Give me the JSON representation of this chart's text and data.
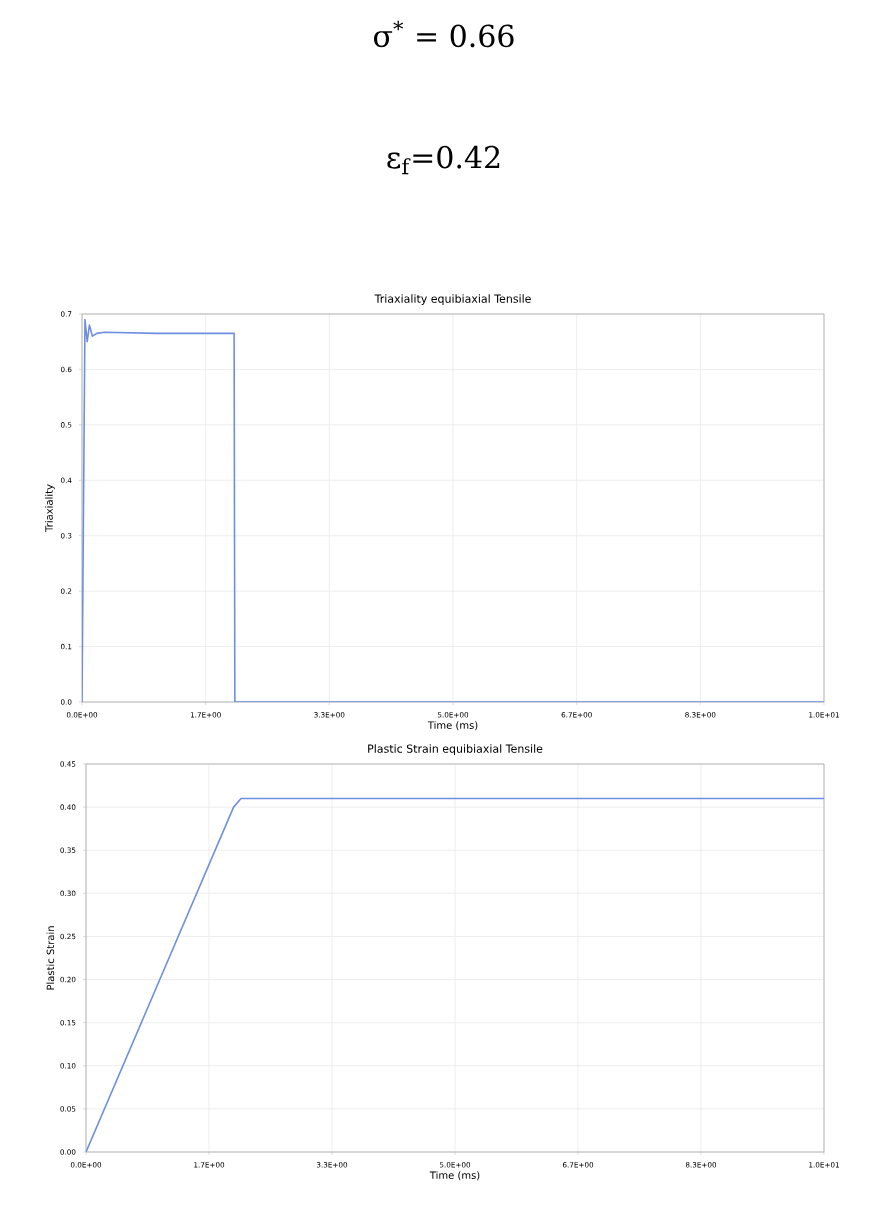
{
  "chart_data": [
    {
      "type": "other",
      "annotations": [
        "σ$^{*}$ = 0.66",
        "ε$_{f}$=0.42"
      ]
    },
    {
      "type": "line",
      "title": "Triaxiality equibiaxial Tensile",
      "xlabel": "Time (ms)",
      "ylabel": "Triaxiality",
      "grid": true,
      "xlim": [
        0,
        10
      ],
      "ylim": [
        0,
        0.7
      ],
      "xticks": [
        {
          "value": 0,
          "label": "0.0E+00"
        },
        {
          "value": 1.667,
          "label": "1.7E+00"
        },
        {
          "value": 3.333,
          "label": "3.3E+00"
        },
        {
          "value": 5,
          "label": "5.0E+00"
        },
        {
          "value": 6.667,
          "label": "6.7E+00"
        },
        {
          "value": 8.333,
          "label": "8.3E+00"
        },
        {
          "value": 10,
          "label": "1.0E+01"
        }
      ],
      "yticks": [
        {
          "value": 0,
          "label": "0.0"
        },
        {
          "value": 0.1,
          "label": "0.1"
        },
        {
          "value": 0.2,
          "label": "0.2"
        },
        {
          "value": 0.3,
          "label": "0.3"
        },
        {
          "value": 0.4,
          "label": "0.4"
        },
        {
          "value": 0.5,
          "label": "0.5"
        },
        {
          "value": 0.6,
          "label": "0.6"
        },
        {
          "value": 0.7,
          "label": "0.7"
        }
      ],
      "series": [
        {
          "color": "#6e8fe0",
          "x": [
            0,
            0.04,
            0.07,
            0.1,
            0.14,
            0.2,
            0.3,
            1.0,
            2.05,
            2.06,
            10
          ],
          "values": [
            0,
            0.69,
            0.65,
            0.68,
            0.66,
            0.665,
            0.667,
            0.665,
            0.665,
            0,
            0
          ]
        }
      ]
    },
    {
      "type": "line",
      "title": "Plastic Strain equibiaxial Tensile",
      "xlabel": "Time (ms)",
      "ylabel": "Plastic Strain",
      "grid": true,
      "xlim": [
        0,
        10
      ],
      "ylim": [
        0,
        0.45
      ],
      "xticks": [
        {
          "value": 0,
          "label": "0.0E+00"
        },
        {
          "value": 1.667,
          "label": "1.7E+00"
        },
        {
          "value": 3.333,
          "label": "3.3E+00"
        },
        {
          "value": 5,
          "label": "5.0E+00"
        },
        {
          "value": 6.667,
          "label": "6.7E+00"
        },
        {
          "value": 8.333,
          "label": "8.3E+00"
        },
        {
          "value": 10,
          "label": "1.0E+01"
        }
      ],
      "yticks": [
        {
          "value": 0,
          "label": "0.00"
        },
        {
          "value": 0.05,
          "label": "0.05"
        },
        {
          "value": 0.1,
          "label": "0.10"
        },
        {
          "value": 0.15,
          "label": "0.15"
        },
        {
          "value": 0.2,
          "label": "0.20"
        },
        {
          "value": 0.25,
          "label": "0.25"
        },
        {
          "value": 0.3,
          "label": "0.30"
        },
        {
          "value": 0.35,
          "label": "0.35"
        },
        {
          "value": 0.4,
          "label": "0.40"
        },
        {
          "value": 0.45,
          "label": "0.45"
        }
      ],
      "series": [
        {
          "color": "#6e8fe0",
          "x": [
            0,
            1.0,
            2.0,
            2.1,
            10
          ],
          "values": [
            0,
            0.2,
            0.4,
            0.41,
            0.41
          ]
        }
      ]
    }
  ]
}
